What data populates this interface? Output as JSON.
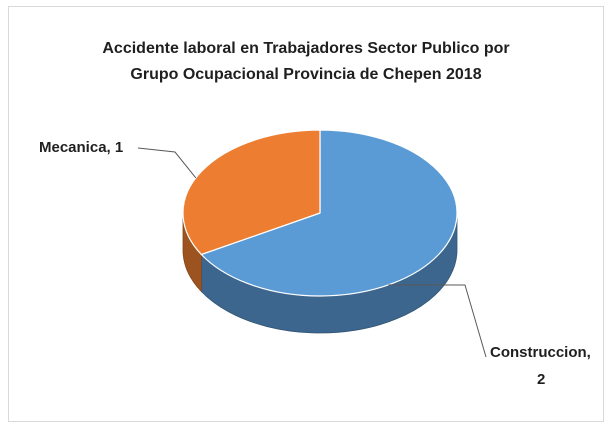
{
  "chart_data": {
    "type": "pie",
    "title_lines": [
      "Accidente laboral en Trabajadores Sector Publico por",
      "Grupo Ocupacional   Provincia de Chepen 2018"
    ],
    "categories": [
      "Construccion",
      "Mecanica"
    ],
    "values": [
      2,
      1
    ],
    "colors": [
      "#5b9bd5",
      "#ed7d31"
    ],
    "data_labels": [
      [
        "Construccion,",
        "2"
      ],
      [
        "Mecanica, 1"
      ]
    ],
    "style": "3d-pie",
    "legend": "none"
  }
}
